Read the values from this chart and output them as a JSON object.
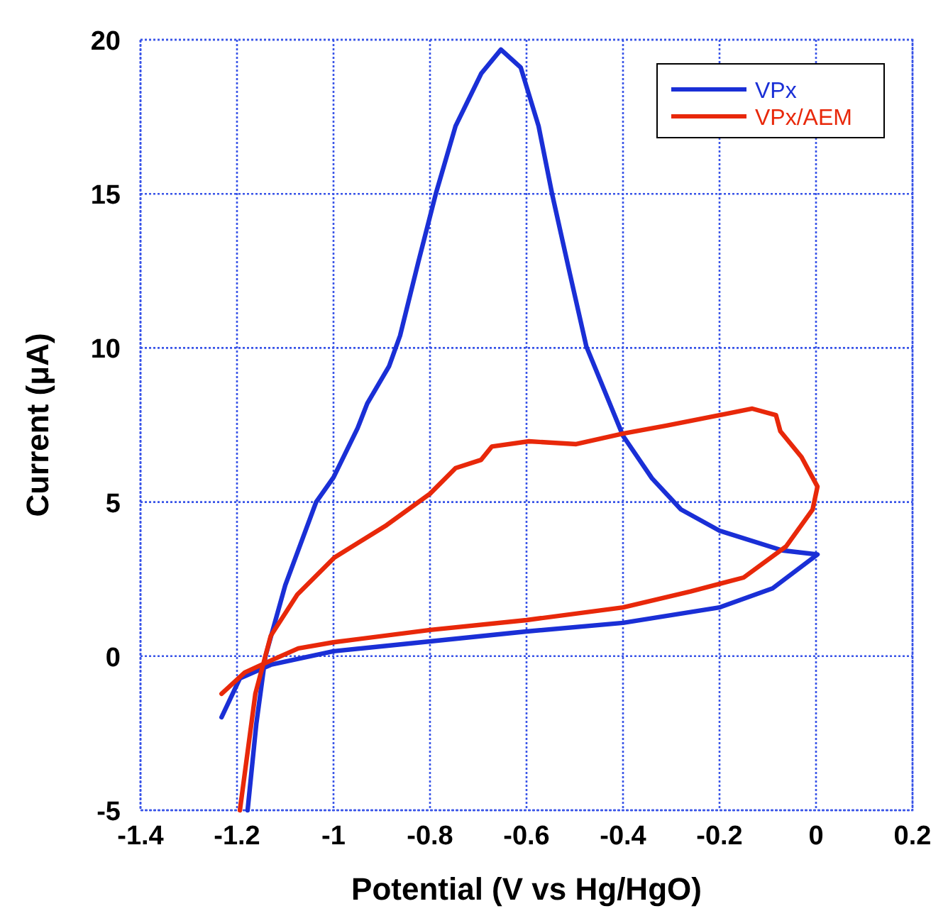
{
  "chart_data": {
    "type": "line",
    "xlabel": "Potential (V vs Hg/HgO)",
    "ylabel": "Current (μA)",
    "xlim": [
      -1.4,
      0.2
    ],
    "ylim": [
      -5,
      20
    ],
    "xticks": [
      -1.4,
      -1.2,
      -1,
      -0.8,
      -0.6,
      -0.4,
      -0.2,
      0,
      0.2
    ],
    "yticks": [
      -5,
      0,
      5,
      10,
      15,
      20
    ],
    "grid": true,
    "legend": "top right",
    "marker": "none",
    "line_style": "solid",
    "series": [
      {
        "name": "VPx",
        "color": "#1a2fd6",
        "x": [
          -1.232,
          -1.194,
          -1.13,
          -1.0,
          -0.8,
          -0.6,
          -0.4,
          -0.2,
          -0.09,
          0.003,
          -0.07,
          -0.2,
          -0.28,
          -0.34,
          -0.4,
          -0.476,
          -0.51,
          -0.547,
          -0.575,
          -0.612,
          -0.653,
          -0.694,
          -0.747,
          -0.788,
          -0.824,
          -0.862,
          -0.885,
          -0.93,
          -0.95,
          -1.0,
          -1.036,
          -1.1,
          -1.141,
          -1.16,
          -1.178
        ],
        "values": [
          -1.98,
          -0.72,
          -0.28,
          0.16,
          0.48,
          0.8,
          1.08,
          1.58,
          2.2,
          3.3,
          3.43,
          4.07,
          4.76,
          5.77,
          7.15,
          10.05,
          12.4,
          15,
          17.2,
          19.1,
          19.68,
          18.9,
          17.2,
          15,
          12.8,
          10.4,
          9.4,
          8.2,
          7.4,
          5.8,
          5,
          2.3,
          0,
          -2.2,
          -5
        ]
      },
      {
        "name": "VPx/AEM",
        "color": "#e8280a",
        "x": [
          -1.232,
          -1.184,
          -1.141,
          -1.073,
          -1.0,
          -0.8,
          -0.6,
          -0.4,
          -0.26,
          -0.15,
          -0.062,
          -0.007,
          0.003,
          -0.03,
          -0.074,
          -0.083,
          -0.132,
          -0.2,
          -0.31,
          -0.4,
          -0.497,
          -0.595,
          -0.672,
          -0.694,
          -0.747,
          -0.8,
          -0.89,
          -0.998,
          -1.075,
          -1.13,
          -1.162,
          -1.194
        ],
        "values": [
          -1.22,
          -0.53,
          -0.22,
          0.25,
          0.45,
          0.85,
          1.17,
          1.58,
          2.1,
          2.55,
          3.56,
          4.76,
          5.5,
          6.46,
          7.3,
          7.82,
          8.03,
          7.82,
          7.48,
          7.22,
          6.88,
          6.97,
          6.8,
          6.37,
          6.1,
          5.27,
          4.25,
          3.2,
          2.0,
          0.66,
          -1.22,
          -5
        ]
      }
    ]
  }
}
